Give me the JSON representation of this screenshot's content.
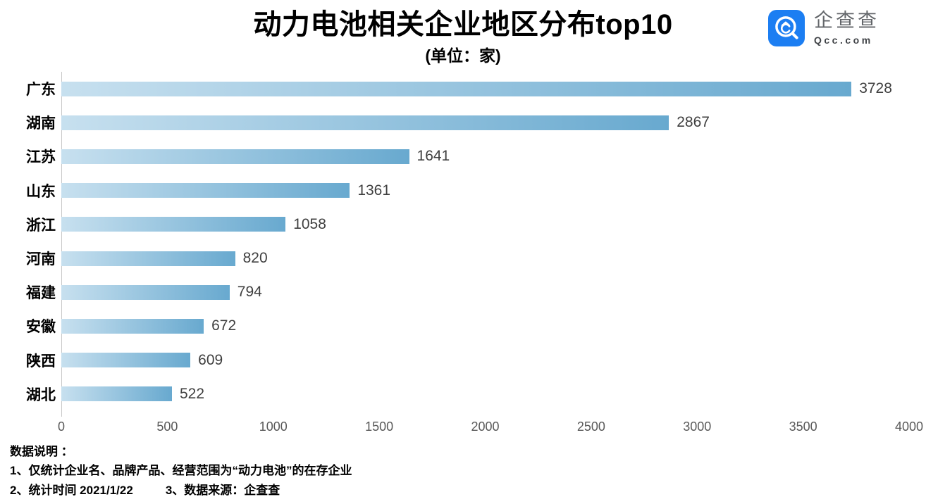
{
  "logo": {
    "name": "企查查",
    "domain": "Qcc.com",
    "brand_color": "#1c7ef2"
  },
  "chart_data": {
    "type": "bar",
    "orientation": "horizontal",
    "title": "动力电池相关企业地区分布top10",
    "subtitle": "(单位：家)",
    "categories": [
      "广东",
      "湖南",
      "江苏",
      "山东",
      "浙江",
      "河南",
      "福建",
      "安徽",
      "陕西",
      "湖北"
    ],
    "values": [
      3728,
      2867,
      1641,
      1361,
      1058,
      820,
      794,
      672,
      609,
      522
    ],
    "xlabel": "",
    "ylabel": "",
    "xlim": [
      0,
      4000
    ],
    "x_ticks": [
      0,
      500,
      1000,
      1500,
      2000,
      2500,
      3000,
      3500,
      4000
    ],
    "grid": false,
    "legend": false,
    "bar_gradient_left": "#c7e0ef",
    "bar_gradient_right": "#68a9cf",
    "value_label_color": "#3f3f3f",
    "tick_label_color": "#595959"
  },
  "notes": {
    "heading": "数据说明 ：",
    "line1": "1、仅统计企业名、品牌产品、经营范围为“动力电池”的在存企业",
    "line2": "2、统计时间  2021/1/22",
    "line3": "3、数据来源：企查查"
  }
}
